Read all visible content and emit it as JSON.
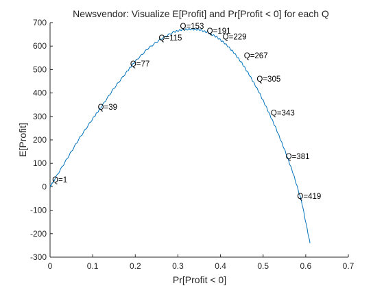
{
  "colors": {
    "line": "#0072BD",
    "axis": "#262626",
    "background": "#ffffff",
    "text": "#000000"
  },
  "chart_data": {
    "type": "line",
    "title": "Newsvendor:  Visualize E[Profit] and Pr[Profit < 0] for each Q",
    "xlabel": "Pr[Profit < 0]",
    "ylabel": "E[Profit]",
    "xlim": [
      0,
      0.7
    ],
    "ylim": [
      -300,
      700
    ],
    "xticks": [
      0,
      0.1,
      0.2,
      0.3,
      0.4,
      0.5,
      0.6,
      0.7
    ],
    "xtick_labels": [
      "0",
      "0.1",
      "0.2",
      "0.3",
      "0.4",
      "0.5",
      "0.6",
      "0.7"
    ],
    "yticks": [
      -300,
      -200,
      -100,
      0,
      100,
      200,
      300,
      400,
      500,
      600,
      700
    ],
    "ytick_labels": [
      "-300",
      "-200",
      "-100",
      "0",
      "100",
      "200",
      "300",
      "400",
      "500",
      "600",
      "700"
    ],
    "grid": false,
    "legend": "none",
    "series": [
      {
        "x": [
          0.0,
          0.01,
          0.04,
          0.07,
          0.1,
          0.12,
          0.15,
          0.18,
          0.2,
          0.23,
          0.26,
          0.29,
          0.31,
          0.33,
          0.35,
          0.37,
          0.39,
          0.41,
          0.43,
          0.45,
          0.47,
          0.49,
          0.51,
          0.53,
          0.55,
          0.57,
          0.59,
          0.61
        ],
        "y": [
          0,
          30,
          120,
          210,
          290,
          340,
          420,
          490,
          535,
          590,
          630,
          660,
          670,
          672,
          670,
          658,
          640,
          612,
          575,
          528,
          470,
          405,
          330,
          250,
          160,
          60,
          -60,
          -240
        ]
      }
    ],
    "annotations": [
      {
        "text": "Q=1",
        "x": 0.005,
        "y": 30
      },
      {
        "text": "Q=39",
        "x": 0.112,
        "y": 340
      },
      {
        "text": "Q=77",
        "x": 0.188,
        "y": 525
      },
      {
        "text": "Q=115",
        "x": 0.255,
        "y": 635
      },
      {
        "text": "Q=153",
        "x": 0.305,
        "y": 685
      },
      {
        "text": "Q=191",
        "x": 0.368,
        "y": 665
      },
      {
        "text": "Q=229",
        "x": 0.405,
        "y": 640
      },
      {
        "text": "Q=267",
        "x": 0.455,
        "y": 560
      },
      {
        "text": "Q=305",
        "x": 0.485,
        "y": 460
      },
      {
        "text": "Q=343",
        "x": 0.518,
        "y": 315
      },
      {
        "text": "Q=381",
        "x": 0.553,
        "y": 130
      },
      {
        "text": "Q=419",
        "x": 0.58,
        "y": -40
      }
    ]
  }
}
